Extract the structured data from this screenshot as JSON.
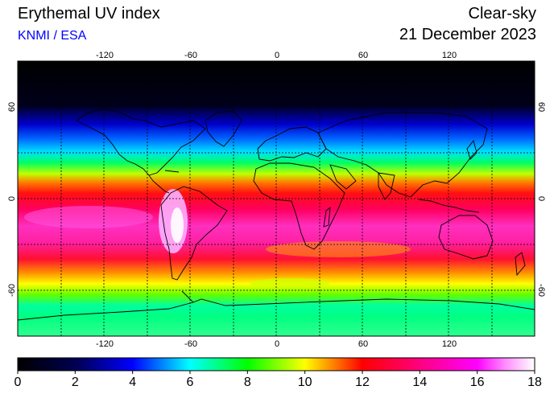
{
  "header": {
    "title": "Erythemal UV index",
    "organization": "KNMI / ESA",
    "condition": "Clear-sky",
    "date": "21 December 2023"
  },
  "map": {
    "lon_ticks": [
      "-120",
      "-60",
      "0",
      "60",
      "120"
    ],
    "lat_ticks": [
      "60",
      "0",
      "-60"
    ],
    "gridlines_deg": 30,
    "gridline_style": "dotted"
  },
  "colorbar": {
    "labels": [
      "0",
      "2",
      "4",
      "6",
      "8",
      "10",
      "12",
      "14",
      "16",
      "18"
    ],
    "min": 0,
    "max": 18,
    "colors": [
      {
        "v": 0,
        "c": "#000000"
      },
      {
        "v": 2,
        "c": "#000050"
      },
      {
        "v": 4,
        "c": "#0000ff"
      },
      {
        "v": 5,
        "c": "#0080ff"
      },
      {
        "v": 6,
        "c": "#00ffff"
      },
      {
        "v": 7,
        "c": "#00ff80"
      },
      {
        "v": 8,
        "c": "#00ff00"
      },
      {
        "v": 9,
        "c": "#80ff00"
      },
      {
        "v": 10,
        "c": "#ffff00"
      },
      {
        "v": 11,
        "c": "#ff8000"
      },
      {
        "v": 12,
        "c": "#ff0000"
      },
      {
        "v": 14,
        "c": "#ff0080"
      },
      {
        "v": 16,
        "c": "#ff00ff"
      },
      {
        "v": 17,
        "c": "#ff90ff"
      },
      {
        "v": 18,
        "c": "#ffffff"
      }
    ]
  }
}
